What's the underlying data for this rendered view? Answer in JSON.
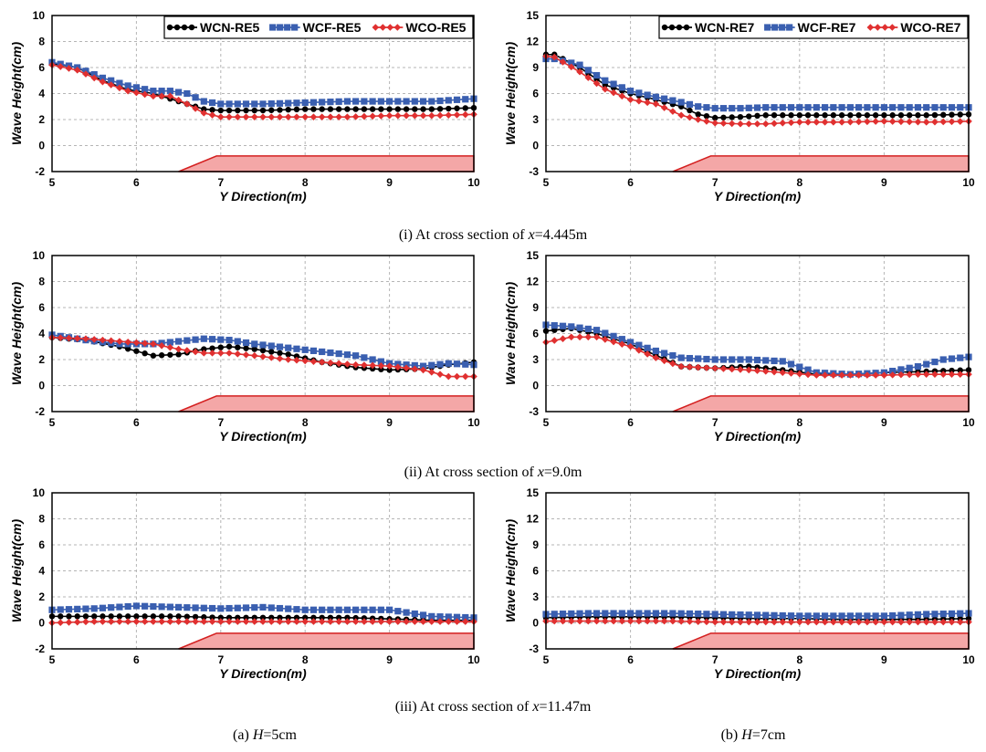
{
  "chart_data": [
    {
      "type": "line",
      "panel": "i-a",
      "xlabel": "Y Direction(m)",
      "ylabel": "Wave Height(cm)",
      "xlim": [
        5,
        10
      ],
      "ylim": [
        -2,
        10
      ],
      "xticks": [
        "5",
        "6",
        "7",
        "8",
        "9",
        "10"
      ],
      "yticks": [
        "-2",
        "0",
        "2",
        "4",
        "6",
        "8",
        "10"
      ],
      "grid": true,
      "legend_position": "top-right",
      "seawall_polygon": [
        [
          6.5,
          -2
        ],
        [
          6.95,
          -0.8
        ],
        [
          10,
          -0.8
        ],
        [
          10,
          -2
        ]
      ],
      "series": [
        {
          "name": "WCN-RE5",
          "color": "#000000",
          "marker": "circle",
          "x": [
            5,
            5.3,
            5.6,
            5.9,
            6.2,
            6.4,
            6.6,
            6.8,
            7.0,
            7.5,
            8,
            8.5,
            9,
            9.5,
            10
          ],
          "y": [
            6.3,
            6.0,
            5.0,
            4.3,
            4.0,
            3.6,
            3.2,
            2.8,
            2.7,
            2.7,
            2.8,
            2.8,
            2.8,
            2.8,
            2.9
          ]
        },
        {
          "name": "WCF-RE5",
          "color": "#3a5fb0",
          "marker": "square",
          "x": [
            5,
            5.3,
            5.6,
            5.9,
            6.2,
            6.4,
            6.6,
            6.8,
            7.0,
            7.5,
            8,
            8.5,
            9,
            9.5,
            10
          ],
          "y": [
            6.4,
            6.0,
            5.2,
            4.6,
            4.2,
            4.2,
            4.0,
            3.4,
            3.2,
            3.2,
            3.3,
            3.4,
            3.4,
            3.4,
            3.6
          ]
        },
        {
          "name": "WCO-RE5",
          "color": "#e03030",
          "marker": "diamond",
          "x": [
            5,
            5.3,
            5.6,
            5.9,
            6.2,
            6.4,
            6.6,
            6.8,
            7.0,
            7.5,
            8,
            8.5,
            9,
            9.5,
            10
          ],
          "y": [
            6.2,
            5.8,
            4.9,
            4.2,
            3.8,
            3.8,
            3.2,
            2.5,
            2.2,
            2.2,
            2.2,
            2.2,
            2.3,
            2.3,
            2.4
          ]
        }
      ]
    },
    {
      "type": "line",
      "panel": "i-b",
      "xlabel": "Y Direction(m)",
      "ylabel": "Wave Height(cm)",
      "xlim": [
        5,
        10
      ],
      "ylim": [
        -3,
        15
      ],
      "xticks": [
        "5",
        "6",
        "7",
        "8",
        "9",
        "10"
      ],
      "yticks": [
        "-3",
        "0",
        "3",
        "6",
        "9",
        "12",
        "15"
      ],
      "grid": true,
      "legend_position": "top-right",
      "seawall_polygon": [
        [
          6.5,
          -3
        ],
        [
          6.95,
          -1.2
        ],
        [
          10,
          -1.2
        ],
        [
          10,
          -3
        ]
      ],
      "series": [
        {
          "name": "WCN-RE7",
          "color": "#000000",
          "marker": "circle",
          "x": [
            5,
            5.1,
            5.4,
            5.7,
            6.0,
            6.3,
            6.6,
            6.8,
            7.0,
            7.3,
            7.6,
            8,
            8.5,
            9,
            9.5,
            10
          ],
          "y": [
            10.5,
            10.5,
            9.0,
            7.0,
            6.0,
            5.3,
            4.5,
            3.6,
            3.2,
            3.3,
            3.5,
            3.5,
            3.5,
            3.5,
            3.5,
            3.6
          ]
        },
        {
          "name": "WCF-RE7",
          "color": "#3a5fb0",
          "marker": "square",
          "x": [
            5,
            5.1,
            5.4,
            5.7,
            6.0,
            6.3,
            6.6,
            6.8,
            7.0,
            7.3,
            7.6,
            8,
            8.5,
            9,
            9.5,
            10
          ],
          "y": [
            10.0,
            10.0,
            9.3,
            7.5,
            6.3,
            5.6,
            5.0,
            4.5,
            4.3,
            4.3,
            4.4,
            4.4,
            4.4,
            4.4,
            4.4,
            4.4
          ]
        },
        {
          "name": "WCO-RE7",
          "color": "#e03030",
          "marker": "diamond",
          "x": [
            5,
            5.1,
            5.4,
            5.7,
            6.0,
            6.3,
            6.6,
            6.8,
            7.0,
            7.3,
            7.6,
            8,
            8.5,
            9,
            9.5,
            10
          ],
          "y": [
            10.3,
            10.2,
            8.5,
            6.5,
            5.3,
            4.8,
            3.5,
            3.0,
            2.6,
            2.5,
            2.5,
            2.7,
            2.7,
            2.8,
            2.7,
            2.8
          ]
        }
      ]
    },
    {
      "type": "line",
      "panel": "ii-a",
      "xlabel": "Y Direction(m)",
      "ylabel": "Wave Height(cm)",
      "xlim": [
        5,
        10
      ],
      "ylim": [
        -2,
        10
      ],
      "xticks": [
        "5",
        "6",
        "7",
        "8",
        "9",
        "10"
      ],
      "yticks": [
        "-2",
        "0",
        "2",
        "4",
        "6",
        "8",
        "10"
      ],
      "grid": true,
      "seawall_polygon": [
        [
          6.5,
          -2
        ],
        [
          6.95,
          -0.8
        ],
        [
          10,
          -0.8
        ],
        [
          10,
          -2
        ]
      ],
      "series": [
        {
          "name": "WCN-RE5",
          "color": "#000000",
          "marker": "circle",
          "x": [
            5,
            5.4,
            5.8,
            6.2,
            6.5,
            6.8,
            7.1,
            7.4,
            7.8,
            8.2,
            8.6,
            9.0,
            9.4,
            9.7,
            10
          ],
          "y": [
            3.7,
            3.5,
            3.0,
            2.3,
            2.4,
            2.8,
            3.0,
            2.8,
            2.4,
            1.8,
            1.4,
            1.2,
            1.3,
            1.6,
            1.8
          ]
        },
        {
          "name": "WCF-RE5",
          "color": "#3a5fb0",
          "marker": "square",
          "x": [
            5,
            5.4,
            5.8,
            6.2,
            6.5,
            6.8,
            7.1,
            7.4,
            7.8,
            8.2,
            8.6,
            9.0,
            9.4,
            9.7,
            10
          ],
          "y": [
            3.9,
            3.5,
            3.2,
            3.2,
            3.4,
            3.6,
            3.5,
            3.2,
            2.9,
            2.6,
            2.3,
            1.7,
            1.5,
            1.7,
            1.6
          ]
        },
        {
          "name": "WCO-RE5",
          "color": "#e03030",
          "marker": "diamond",
          "x": [
            5,
            5.4,
            5.8,
            6.2,
            6.5,
            6.8,
            7.1,
            7.4,
            7.8,
            8.2,
            8.6,
            9.0,
            9.4,
            9.7,
            10
          ],
          "y": [
            3.7,
            3.6,
            3.4,
            3.2,
            2.8,
            2.5,
            2.5,
            2.3,
            2.0,
            1.8,
            1.6,
            1.5,
            1.2,
            0.7,
            0.7
          ]
        }
      ]
    },
    {
      "type": "line",
      "panel": "ii-b",
      "xlabel": "Y Direction(m)",
      "ylabel": "Wave Height(cm)",
      "xlim": [
        5,
        10
      ],
      "ylim": [
        -3,
        15
      ],
      "xticks": [
        "5",
        "6",
        "7",
        "8",
        "9",
        "10"
      ],
      "yticks": [
        "-3",
        "0",
        "3",
        "6",
        "9",
        "12",
        "15"
      ],
      "grid": true,
      "seawall_polygon": [
        [
          6.5,
          -3
        ],
        [
          6.95,
          -1.2
        ],
        [
          10,
          -1.2
        ],
        [
          10,
          -3
        ]
      ],
      "series": [
        {
          "name": "WCN-RE7",
          "color": "#000000",
          "marker": "circle",
          "x": [
            5,
            5.3,
            5.6,
            6.0,
            6.3,
            6.6,
            7.0,
            7.4,
            7.8,
            8.2,
            8.6,
            9.0,
            9.4,
            9.7,
            10
          ],
          "y": [
            6.3,
            6.6,
            6.0,
            4.8,
            3.5,
            2.2,
            2.0,
            2.2,
            1.8,
            1.3,
            1.3,
            1.5,
            1.6,
            1.7,
            1.8
          ]
        },
        {
          "name": "WCF-RE7",
          "color": "#3a5fb0",
          "marker": "square",
          "x": [
            5,
            5.3,
            5.6,
            6.0,
            6.3,
            6.6,
            7.0,
            7.4,
            7.8,
            8.2,
            8.6,
            9.0,
            9.4,
            9.7,
            10
          ],
          "y": [
            7.0,
            6.8,
            6.4,
            5.0,
            4.0,
            3.2,
            3.0,
            3.0,
            2.8,
            1.5,
            1.3,
            1.5,
            2.2,
            3.0,
            3.3
          ]
        },
        {
          "name": "WCO-RE7",
          "color": "#e03030",
          "marker": "diamond",
          "x": [
            5,
            5.3,
            5.6,
            6.0,
            6.3,
            6.6,
            7.0,
            7.4,
            7.8,
            8.2,
            8.6,
            9.0,
            9.4,
            9.7,
            10
          ],
          "y": [
            5.0,
            5.6,
            5.6,
            4.5,
            3.2,
            2.2,
            2.0,
            1.8,
            1.5,
            1.2,
            1.2,
            1.2,
            1.3,
            1.3,
            1.3
          ]
        }
      ]
    },
    {
      "type": "line",
      "panel": "iii-a",
      "xlabel": "Y Direction(m)",
      "ylabel": "Wave Height(cm)",
      "xlim": [
        5,
        10
      ],
      "ylim": [
        -2,
        10
      ],
      "xticks": [
        "5",
        "6",
        "7",
        "8",
        "9",
        "10"
      ],
      "yticks": [
        "-2",
        "0",
        "2",
        "4",
        "6",
        "8",
        "10"
      ],
      "grid": true,
      "seawall_polygon": [
        [
          6.5,
          -2
        ],
        [
          6.95,
          -0.8
        ],
        [
          10,
          -0.8
        ],
        [
          10,
          -2
        ]
      ],
      "series": [
        {
          "name": "WCN-RE5",
          "color": "#000000",
          "marker": "circle",
          "x": [
            5,
            5.5,
            6.0,
            6.5,
            7.0,
            7.5,
            8.0,
            8.5,
            9.0,
            9.5,
            10
          ],
          "y": [
            0.5,
            0.5,
            0.5,
            0.5,
            0.4,
            0.4,
            0.4,
            0.4,
            0.3,
            0.2,
            0.2
          ]
        },
        {
          "name": "WCF-RE5",
          "color": "#3a5fb0",
          "marker": "square",
          "x": [
            5,
            5.5,
            6.0,
            6.5,
            7.0,
            7.5,
            8.0,
            8.5,
            9.0,
            9.5,
            10
          ],
          "y": [
            1.0,
            1.1,
            1.3,
            1.2,
            1.1,
            1.2,
            1.0,
            1.0,
            1.0,
            0.5,
            0.4
          ]
        },
        {
          "name": "WCO-RE5",
          "color": "#e03030",
          "marker": "diamond",
          "x": [
            5,
            5.5,
            6.0,
            6.5,
            7.0,
            7.5,
            8.0,
            8.5,
            9.0,
            9.5,
            10
          ],
          "y": [
            0.0,
            0.1,
            0.1,
            0.1,
            0.1,
            0.1,
            0.1,
            0.1,
            0.1,
            0.1,
            0.1
          ]
        }
      ]
    },
    {
      "type": "line",
      "panel": "iii-b",
      "xlabel": "Y Direction(m)",
      "ylabel": "Wave Height(cm)",
      "xlim": [
        5,
        10
      ],
      "ylim": [
        -3,
        15
      ],
      "xticks": [
        "5",
        "6",
        "7",
        "8",
        "9",
        "10"
      ],
      "yticks": [
        "-3",
        "0",
        "3",
        "6",
        "9",
        "12",
        "15"
      ],
      "grid": true,
      "seawall_polygon": [
        [
          6.5,
          -3
        ],
        [
          6.95,
          -1.2
        ],
        [
          10,
          -1.2
        ],
        [
          10,
          -3
        ]
      ],
      "series": [
        {
          "name": "WCN-RE7",
          "color": "#000000",
          "marker": "circle",
          "x": [
            5,
            5.5,
            6.0,
            6.5,
            7.0,
            7.5,
            8.0,
            8.5,
            9.0,
            9.5,
            10
          ],
          "y": [
            0.6,
            0.7,
            0.7,
            0.7,
            0.6,
            0.5,
            0.5,
            0.4,
            0.4,
            0.4,
            0.5
          ]
        },
        {
          "name": "WCF-RE7",
          "color": "#3a5fb0",
          "marker": "square",
          "x": [
            5,
            5.5,
            6.0,
            6.5,
            7.0,
            7.5,
            8.0,
            8.5,
            9.0,
            9.5,
            10
          ],
          "y": [
            1.0,
            1.1,
            1.1,
            1.1,
            1.0,
            0.9,
            0.8,
            0.8,
            0.8,
            1.0,
            1.1
          ]
        },
        {
          "name": "WCO-RE7",
          "color": "#e03030",
          "marker": "diamond",
          "x": [
            5,
            5.5,
            6.0,
            6.5,
            7.0,
            7.5,
            8.0,
            8.5,
            9.0,
            9.5,
            10
          ],
          "y": [
            0.2,
            0.2,
            0.2,
            0.2,
            0.1,
            0.1,
            0.1,
            0.1,
            0.1,
            0.1,
            0.1
          ]
        }
      ]
    }
  ],
  "captions": {
    "row1": {
      "prefix": "(i) At cross section of ",
      "var": "x",
      "suffix": "=4.445m"
    },
    "row2": {
      "prefix": "(ii) At cross section of ",
      "var": "x",
      "suffix": "=9.0m"
    },
    "row3": {
      "prefix": "(iii) At cross section of ",
      "var": "x",
      "suffix": "=11.47m"
    },
    "col_a": {
      "prefix": "(a) ",
      "var": "H",
      "suffix": "=5cm"
    },
    "col_b": {
      "prefix": "(b) ",
      "var": "H",
      "suffix": "=7cm"
    }
  }
}
